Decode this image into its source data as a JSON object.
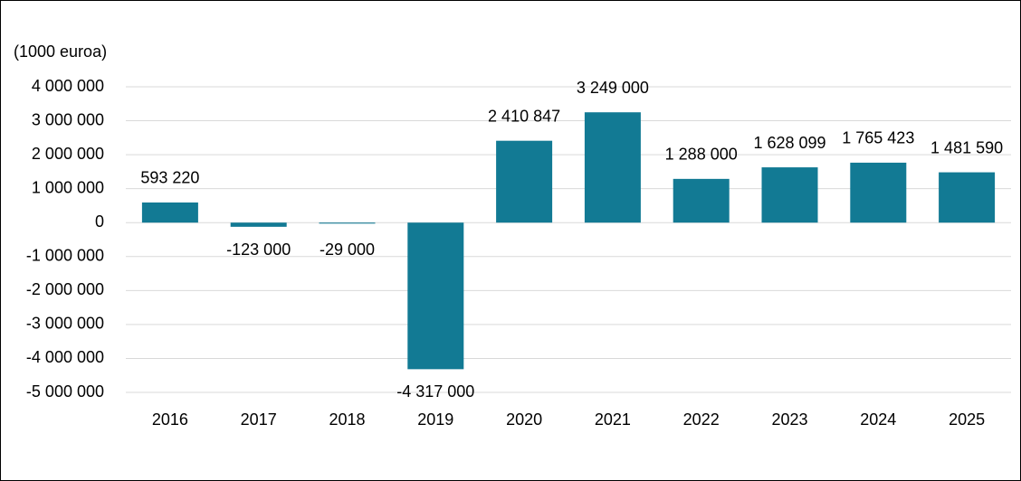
{
  "chart_data": {
    "type": "bar",
    "y_unit_label": "(1000 euroa)",
    "categories": [
      "2016",
      "2017",
      "2018",
      "2019",
      "2020",
      "2021",
      "2022",
      "2023",
      "2024",
      "2025"
    ],
    "values": [
      593220,
      -123000,
      -29000,
      -4317000,
      2410847,
      3249000,
      1288000,
      1628099,
      1765423,
      1481590
    ],
    "value_labels": [
      "593 220",
      "-123 000",
      "-29 000",
      "-4 317 000",
      "2 410 847",
      "3 249 000",
      "1 288 000",
      "1 628 099",
      "1 765 423",
      "1 481 590"
    ],
    "color": "#127a94",
    "ylim": [
      -5000000,
      4000000
    ],
    "yticks": [
      {
        "value": -5000000,
        "label": "-5 000 000"
      },
      {
        "value": -4000000,
        "label": "-4 000 000"
      },
      {
        "value": -3000000,
        "label": "-3 000 000"
      },
      {
        "value": -2000000,
        "label": "-2 000 000"
      },
      {
        "value": -1000000,
        "label": "-1 000 000"
      },
      0,
      {
        "value": 1000000,
        "label": "1 000 000"
      },
      {
        "value": 2000000,
        "label": "2 000 000"
      },
      {
        "value": 3000000,
        "label": "3 000 000"
      },
      {
        "value": 4000000,
        "label": "4 000 000"
      }
    ],
    "grid": true
  }
}
